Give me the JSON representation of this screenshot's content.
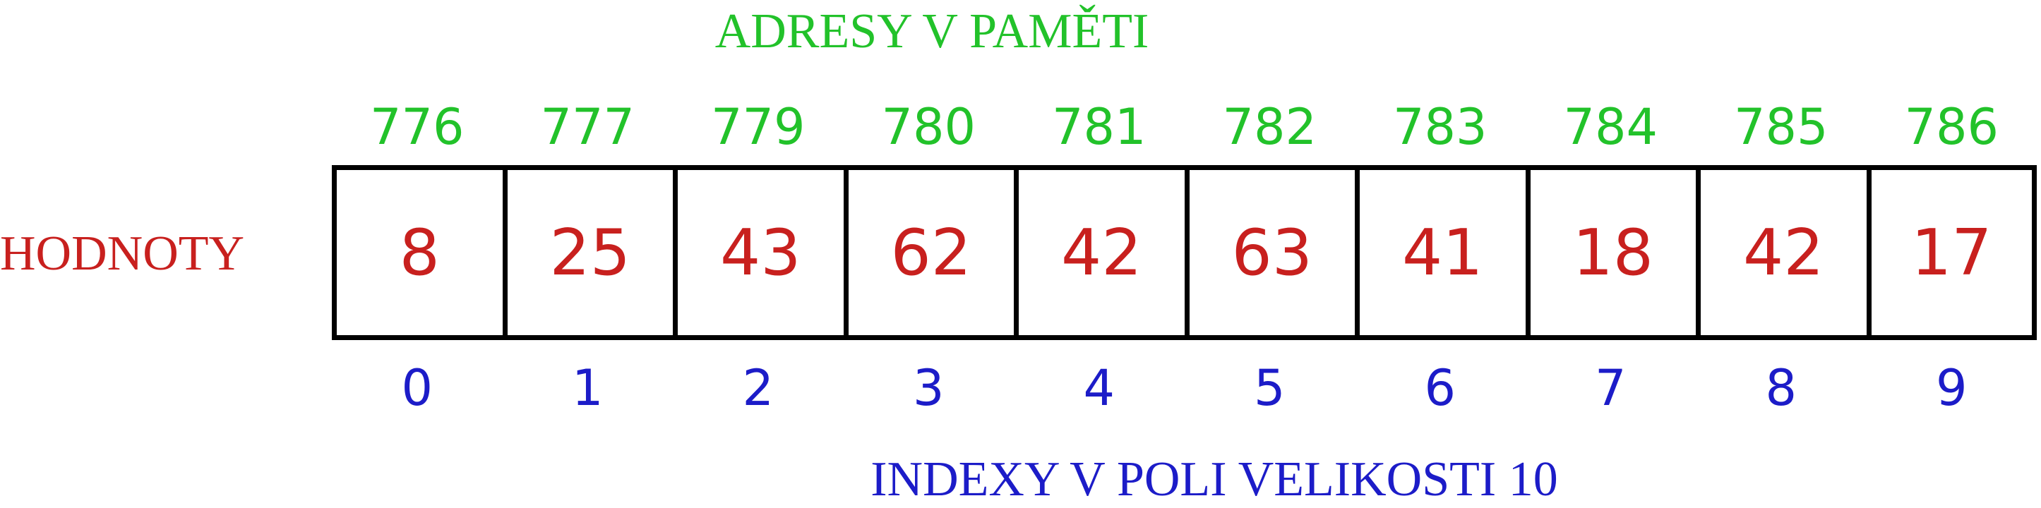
{
  "labels": {
    "top": "ADRESY V PAMĚTI",
    "bottom": "INDEXY V POLI VELIKOSTI 10",
    "values": "HODNOTY"
  },
  "addresses": [
    "776",
    "777",
    "779",
    "780",
    "781",
    "782",
    "783",
    "784",
    "785",
    "786"
  ],
  "values": [
    "8",
    "25",
    "43",
    "62",
    "42",
    "63",
    "41",
    "18",
    "42",
    "17"
  ],
  "indices": [
    "0",
    "1",
    "2",
    "3",
    "4",
    "5",
    "6",
    "7",
    "8",
    "9"
  ],
  "colors": {
    "addresses": "#22c22a",
    "values": "#c8201e",
    "indices": "#1c1cc8",
    "border": "#000000"
  }
}
